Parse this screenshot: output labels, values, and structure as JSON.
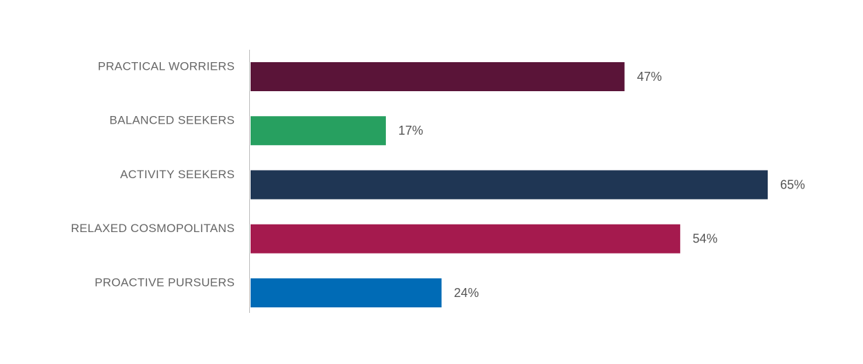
{
  "chart_data": {
    "type": "bar",
    "orientation": "horizontal",
    "categories": [
      "PRACTICAL WORRIERS",
      "BALANCED SEEKERS",
      "ACTIVITY SEEKERS",
      "RELAXED COSMOPOLITANS",
      "PROACTIVE PURSUERS"
    ],
    "values": [
      47,
      17,
      65,
      54,
      24
    ],
    "value_labels": [
      "47%",
      "17%",
      "65%",
      "54%",
      "24%"
    ],
    "colors": [
      "#5a1438",
      "#27a060",
      "#1f3654",
      "#a51a4e",
      "#006bb6"
    ]
  }
}
